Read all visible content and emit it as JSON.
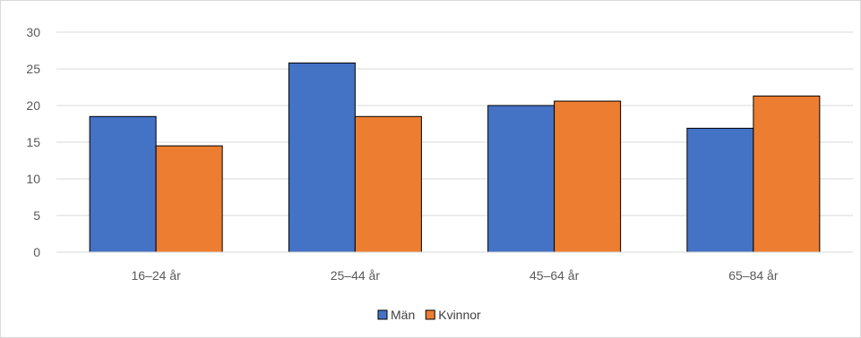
{
  "chart_data": {
    "type": "bar",
    "categories": [
      "16–24 år",
      "25–44 år",
      "45–64 år",
      "65–84 år"
    ],
    "series": [
      {
        "name": "Män",
        "values": [
          18.5,
          25.8,
          20.0,
          16.9
        ],
        "color": "#4472c4"
      },
      {
        "name": "Kvinnor",
        "values": [
          14.5,
          18.5,
          20.6,
          21.3
        ],
        "color": "#ed7d31"
      }
    ],
    "y_ticks": [
      "0",
      "5",
      "10",
      "15",
      "20",
      "25",
      "30"
    ],
    "ylim": [
      0,
      30
    ],
    "grid": true,
    "legend_position": "bottom"
  }
}
